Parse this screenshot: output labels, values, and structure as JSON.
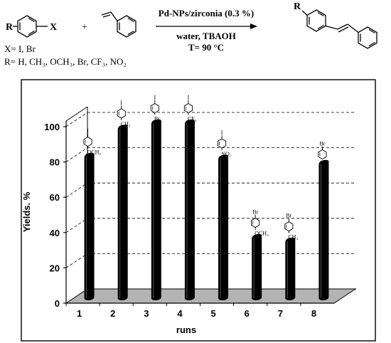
{
  "scheme": {
    "r_label": "R",
    "x_label": "X",
    "plus": "+",
    "catalyst": "Pd-NPs/zirconia (0.3 %)",
    "solvent": "water, TBAOH",
    "temperature": "T= 90 °C",
    "product_r": "R",
    "x_def": "X= I, Br",
    "r_def": "R= H, CH₃, OCH₃, Br, CF₃, NO₂"
  },
  "chart_data": {
    "type": "bar",
    "categories": [
      "1",
      "2",
      "3",
      "4",
      "5",
      "6",
      "7",
      "8"
    ],
    "values": [
      81,
      97,
      100,
      100,
      80,
      35,
      33,
      77
    ],
    "xlabel": "runs",
    "ylabel": "Yields. %",
    "yticks": [
      "0",
      "20",
      "40",
      "60",
      "80",
      "100"
    ],
    "ylim": [
      0,
      100
    ],
    "grid": true,
    "style": "3d",
    "bar_color": "#000000",
    "floor_color": "#b3b3b3",
    "substituents": [
      {
        "top": "I",
        "bottom": "OCH₃"
      },
      {
        "top": "I",
        "bottom": "CH₃"
      },
      {
        "top": "I",
        "bottom": "Br"
      },
      {
        "top": "I",
        "bottom": "CF₃"
      },
      {
        "top": "I",
        "bottom": "NO₂"
      },
      {
        "top": "Br",
        "bottom": "OCH₃"
      },
      {
        "top": "Br",
        "bottom": "CH₃"
      },
      {
        "top": "Br",
        "bottom": ""
      }
    ]
  }
}
